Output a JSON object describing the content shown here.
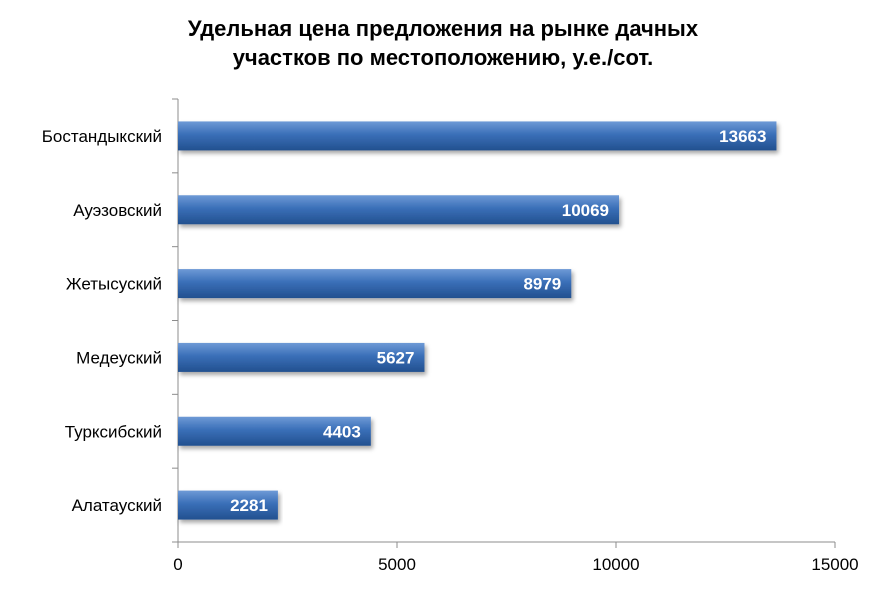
{
  "chart_data": {
    "type": "bar",
    "orientation": "horizontal",
    "title_lines": [
      "Удельная цена предложения на рынке дачных",
      "участков по местоположению, у.е./сот."
    ],
    "categories": [
      "Бостандыкский",
      "Ауэзовский",
      "Жетысуский",
      "Медеуский",
      "Турксибский",
      "Алатауский"
    ],
    "values": [
      13663,
      10069,
      8979,
      5627,
      4403,
      2281
    ],
    "value_labels": [
      "13663",
      "10069",
      "8979",
      "5627",
      "4403",
      "2281"
    ],
    "xlim": [
      0,
      15000
    ],
    "x_ticks": [
      0,
      5000,
      10000,
      15000
    ],
    "x_tick_labels": [
      "0",
      "5000",
      "10000",
      "15000"
    ],
    "grid": false,
    "legend": "none",
    "bar_color": "#3a6fb8",
    "bar_color_light": "#6e9ad6",
    "bar_color_dark": "#22508f"
  }
}
